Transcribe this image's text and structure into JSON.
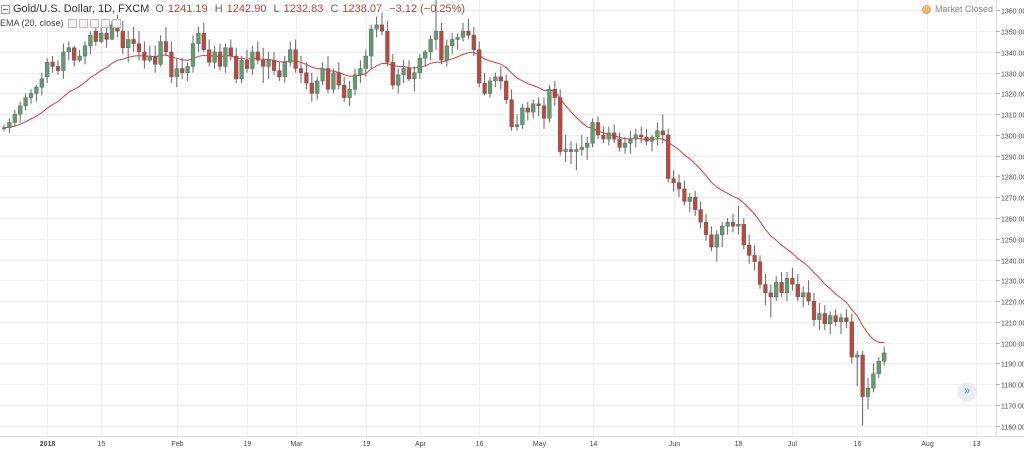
{
  "legend": {
    "symbol": "Gold/U.S. Dollar, 1D, FXCM",
    "open_label": "O",
    "open": "1241.19",
    "high_label": "H",
    "high": "1242.90",
    "low_label": "L",
    "low": "1232.83",
    "close_label": "C",
    "close": "1238.07",
    "change": "−3.12 (−0.25%)",
    "ema_label": "EMA (20, close)"
  },
  "status": {
    "text": "Market Closed",
    "icon": "clock-icon"
  },
  "scroll_button": {
    "icon": "double-chevron-right-icon",
    "glyph": "»"
  },
  "colors": {
    "up": "#5f9e70",
    "down": "#c0473c",
    "ema": "#e0393a",
    "grid": "#eceff3",
    "axis_text": "#4a4a4a"
  },
  "chart_data": {
    "type": "candlestick",
    "ylim": [
      1155,
      1365
    ],
    "y_ticks": [
      "1160.00",
      "1170.00",
      "1180.00",
      "1190.00",
      "1200.00",
      "1210.00",
      "1220.00",
      "1230.00",
      "1240.00",
      "1250.00",
      "1260.00",
      "1270.00",
      "1280.00",
      "1290.00",
      "1300.00",
      "1310.00",
      "1320.00",
      "1330.00",
      "1340.00",
      "1350.00",
      "1360.00"
    ],
    "x_ticks": [
      {
        "label": "2018",
        "bar": 8,
        "bold": true
      },
      {
        "label": "15",
        "bar": 18
      },
      {
        "label": "Feb",
        "bar": 32
      },
      {
        "label": "19",
        "bar": 45
      },
      {
        "label": "Mar",
        "bar": 54
      },
      {
        "label": "19",
        "bar": 67
      },
      {
        "label": "Apr",
        "bar": 77
      },
      {
        "label": "16",
        "bar": 88
      },
      {
        "label": "May",
        "bar": 99
      },
      {
        "label": "14",
        "bar": 109
      },
      {
        "label": "Jun",
        "bar": 124
      },
      {
        "label": "18",
        "bar": 136
      },
      {
        "label": "Jul",
        "bar": 146
      },
      {
        "label": "16",
        "bar": 158
      },
      {
        "label": "Aug",
        "bar": 171
      },
      {
        "label": "13",
        "bar": 180
      }
    ],
    "ohlc": [
      [
        1303,
        1305,
        1302,
        1303.5
      ],
      [
        1303.5,
        1308,
        1301,
        1306
      ],
      [
        1306,
        1312,
        1304,
        1310
      ],
      [
        1310,
        1316,
        1306,
        1314
      ],
      [
        1314,
        1320,
        1312,
        1318
      ],
      [
        1318,
        1322,
        1315,
        1320
      ],
      [
        1320,
        1324,
        1316,
        1323
      ],
      [
        1323,
        1330,
        1319,
        1327
      ],
      [
        1328,
        1337,
        1325,
        1335
      ],
      [
        1335,
        1338,
        1330,
        1333
      ],
      [
        1333,
        1336,
        1329,
        1331
      ],
      [
        1331,
        1344,
        1327,
        1340
      ],
      [
        1340,
        1345,
        1336,
        1342
      ],
      [
        1342,
        1343,
        1333,
        1336
      ],
      [
        1336,
        1341,
        1335,
        1338
      ],
      [
        1338,
        1345,
        1334,
        1343
      ],
      [
        1343,
        1350,
        1339,
        1348
      ],
      [
        1350,
        1352,
        1343,
        1345
      ],
      [
        1345,
        1352,
        1344,
        1349
      ],
      [
        1349,
        1355,
        1342,
        1346
      ],
      [
        1346,
        1355,
        1346,
        1353
      ],
      [
        1353,
        1358,
        1347,
        1350
      ],
      [
        1350,
        1355,
        1339,
        1342
      ],
      [
        1342,
        1350,
        1335,
        1346
      ],
      [
        1346,
        1352,
        1340,
        1344
      ],
      [
        1344,
        1350,
        1336,
        1340
      ],
      [
        1340,
        1345,
        1332,
        1336
      ],
      [
        1336,
        1343,
        1335,
        1338
      ],
      [
        1338,
        1343,
        1330,
        1334
      ],
      [
        1334,
        1348,
        1333,
        1345
      ],
      [
        1345,
        1352,
        1338,
        1340
      ],
      [
        1340,
        1345,
        1325,
        1328
      ],
      [
        1328,
        1337,
        1323,
        1332
      ],
      [
        1332,
        1337,
        1327,
        1330
      ],
      [
        1330,
        1335,
        1326,
        1333
      ],
      [
        1333,
        1348,
        1330,
        1344
      ],
      [
        1344,
        1352,
        1340,
        1349
      ],
      [
        1349,
        1354,
        1340,
        1341
      ],
      [
        1341,
        1346,
        1333,
        1335
      ],
      [
        1335,
        1343,
        1332,
        1340
      ],
      [
        1340,
        1344,
        1331,
        1333
      ],
      [
        1333,
        1344,
        1330,
        1342
      ],
      [
        1342,
        1346,
        1336,
        1338
      ],
      [
        1338,
        1342,
        1325,
        1327
      ],
      [
        1327,
        1338,
        1325,
        1336
      ],
      [
        1336,
        1341,
        1330,
        1332
      ],
      [
        1332,
        1343,
        1329,
        1340
      ],
      [
        1340,
        1345,
        1334,
        1336
      ],
      [
        1336,
        1342,
        1325,
        1333
      ],
      [
        1333,
        1340,
        1327,
        1336
      ],
      [
        1336,
        1340,
        1329,
        1331
      ],
      [
        1331,
        1335,
        1326,
        1328
      ],
      [
        1328,
        1338,
        1325,
        1335
      ],
      [
        1335,
        1345,
        1333,
        1341
      ],
      [
        1341,
        1346,
        1330,
        1332
      ],
      [
        1332,
        1338,
        1325,
        1330
      ],
      [
        1330,
        1335,
        1322,
        1325
      ],
      [
        1325,
        1330,
        1316,
        1320
      ],
      [
        1320,
        1328,
        1317,
        1326
      ],
      [
        1326,
        1335,
        1324,
        1332
      ],
      [
        1332,
        1338,
        1320,
        1322
      ],
      [
        1322,
        1332,
        1320,
        1330
      ],
      [
        1330,
        1335,
        1322,
        1324
      ],
      [
        1324,
        1328,
        1316,
        1318
      ],
      [
        1318,
        1326,
        1314,
        1322
      ],
      [
        1322,
        1332,
        1319,
        1329
      ],
      [
        1329,
        1336,
        1325,
        1332
      ],
      [
        1332,
        1341,
        1328,
        1338
      ],
      [
        1338,
        1353,
        1332,
        1351
      ],
      [
        1351,
        1357,
        1347,
        1353
      ],
      [
        1353,
        1359,
        1348,
        1350
      ],
      [
        1350,
        1355,
        1333,
        1335
      ],
      [
        1335,
        1339,
        1322,
        1324
      ],
      [
        1324,
        1332,
        1320,
        1329
      ],
      [
        1329,
        1336,
        1325,
        1332
      ],
      [
        1332,
        1336,
        1326,
        1327
      ],
      [
        1327,
        1333,
        1321,
        1330
      ],
      [
        1330,
        1339,
        1327,
        1337
      ],
      [
        1337,
        1341,
        1333,
        1340
      ],
      [
        1340,
        1348,
        1336,
        1346
      ],
      [
        1346,
        1367,
        1341,
        1350
      ],
      [
        1350,
        1354,
        1334,
        1336
      ],
      [
        1336,
        1346,
        1333,
        1343
      ],
      [
        1343,
        1349,
        1339,
        1346
      ],
      [
        1346,
        1349,
        1341,
        1347
      ],
      [
        1347,
        1354,
        1345,
        1350
      ],
      [
        1350,
        1356,
        1346,
        1348
      ],
      [
        1348,
        1352,
        1338,
        1341
      ],
      [
        1341,
        1345,
        1323,
        1325
      ],
      [
        1325,
        1330,
        1319,
        1320
      ],
      [
        1320,
        1328,
        1318,
        1326
      ],
      [
        1326,
        1330,
        1323,
        1328
      ],
      [
        1328,
        1333,
        1322,
        1326
      ],
      [
        1326,
        1329,
        1315,
        1317
      ],
      [
        1317,
        1322,
        1302,
        1304
      ],
      [
        1304,
        1310,
        1302,
        1305
      ],
      [
        1305,
        1315,
        1303,
        1313
      ],
      [
        1313,
        1316,
        1307,
        1311
      ],
      [
        1311,
        1317,
        1308,
        1315
      ],
      [
        1315,
        1318,
        1309,
        1314
      ],
      [
        1314,
        1318,
        1303,
        1308
      ],
      [
        1308,
        1324,
        1306,
        1322
      ],
      [
        1322,
        1326,
        1314,
        1318
      ],
      [
        1318,
        1322,
        1290,
        1292
      ],
      [
        1292,
        1300,
        1287,
        1293
      ],
      [
        1293,
        1297,
        1286,
        1292
      ],
      [
        1292,
        1296,
        1283,
        1293
      ],
      [
        1293,
        1300,
        1290,
        1294
      ],
      [
        1294,
        1299,
        1288,
        1296
      ],
      [
        1296,
        1308,
        1294,
        1306
      ],
      [
        1306,
        1309,
        1298,
        1300
      ],
      [
        1300,
        1304,
        1296,
        1298
      ],
      [
        1298,
        1304,
        1295,
        1301
      ],
      [
        1301,
        1305,
        1296,
        1298
      ],
      [
        1298,
        1301,
        1292,
        1294
      ],
      [
        1294,
        1299,
        1291,
        1296
      ],
      [
        1296,
        1302,
        1291,
        1298
      ],
      [
        1298,
        1303,
        1294,
        1300
      ],
      [
        1300,
        1304,
        1296,
        1299
      ],
      [
        1299,
        1303,
        1295,
        1297
      ],
      [
        1297,
        1300,
        1292,
        1299
      ],
      [
        1299,
        1306,
        1295,
        1302
      ],
      [
        1302,
        1310,
        1296,
        1300
      ],
      [
        1300,
        1303,
        1277,
        1279
      ],
      [
        1279,
        1283,
        1273,
        1277
      ],
      [
        1277,
        1281,
        1270,
        1274
      ],
      [
        1274,
        1278,
        1266,
        1268
      ],
      [
        1268,
        1272,
        1263,
        1270
      ],
      [
        1270,
        1273,
        1261,
        1264
      ],
      [
        1264,
        1268,
        1255,
        1258
      ],
      [
        1258,
        1262,
        1249,
        1252
      ],
      [
        1252,
        1256,
        1244,
        1246
      ],
      [
        1246,
        1254,
        1239,
        1252
      ],
      [
        1252,
        1258,
        1246,
        1256
      ],
      [
        1256,
        1260,
        1252,
        1258
      ],
      [
        1258,
        1262,
        1253,
        1256
      ],
      [
        1256,
        1266,
        1252,
        1257
      ],
      [
        1257,
        1260,
        1245,
        1247
      ],
      [
        1247,
        1252,
        1238,
        1242
      ],
      [
        1242,
        1247,
        1235,
        1239
      ],
      [
        1239,
        1242,
        1226,
        1228
      ],
      [
        1228,
        1233,
        1218,
        1224
      ],
      [
        1224,
        1228,
        1212,
        1222
      ],
      [
        1222,
        1232,
        1220,
        1229
      ],
      [
        1229,
        1234,
        1222,
        1224
      ],
      [
        1224,
        1234,
        1220,
        1231
      ],
      [
        1231,
        1236,
        1225,
        1228
      ],
      [
        1228,
        1233,
        1220,
        1222
      ],
      [
        1222,
        1227,
        1217,
        1224
      ],
      [
        1224,
        1230,
        1218,
        1220
      ],
      [
        1220,
        1224,
        1208,
        1211
      ],
      [
        1211,
        1219,
        1206,
        1214
      ],
      [
        1214,
        1218,
        1206,
        1209
      ],
      [
        1209,
        1215,
        1204,
        1213
      ],
      [
        1213,
        1216,
        1208,
        1210
      ],
      [
        1210,
        1214,
        1204,
        1212
      ],
      [
        1212,
        1216,
        1207,
        1210
      ],
      [
        1210,
        1214,
        1190,
        1193
      ],
      [
        1193,
        1196,
        1179,
        1194
      ],
      [
        1194,
        1196,
        1160,
        1174
      ],
      [
        1174,
        1183,
        1168,
        1178
      ],
      [
        1178,
        1190,
        1176,
        1185
      ],
      [
        1185,
        1193,
        1183,
        1191
      ],
      [
        1191,
        1198,
        1189,
        1195
      ]
    ],
    "ema": [
      1303.5,
      1303.7,
      1304.3,
      1305.2,
      1306.4,
      1307.7,
      1309.1,
      1310.8,
      1312.9,
      1314.6,
      1316.1,
      1318.4,
      1320.6,
      1322.0,
      1323.5,
      1325.4,
      1327.6,
      1329.2,
      1331.1,
      1332.5,
      1334.5,
      1336.0,
      1336.5,
      1337.4,
      1338.0,
      1338.2,
      1338.0,
      1338.0,
      1337.6,
      1338.3,
      1338.5,
      1337.5,
      1336.9,
      1336.2,
      1335.9,
      1336.7,
      1337.9,
      1338.3,
      1338.0,
      1338.2,
      1337.7,
      1338.1,
      1338.1,
      1337.0,
      1336.9,
      1336.5,
      1336.8,
      1336.7,
      1336.4,
      1336.4,
      1335.9,
      1335.2,
      1335.2,
      1335.7,
      1335.5,
      1335.0,
      1334.0,
      1332.7,
      1331.9,
      1331.9,
      1330.9,
      1330.8,
      1330.1,
      1329.0,
      1328.3,
      1328.4,
      1328.8,
      1329.6,
      1331.7,
      1333.3,
      1334.4,
      1334.4,
      1333.4,
      1333.0,
      1332.9,
      1332.4,
      1332.2,
      1332.7,
      1333.3,
      1334.5,
      1335.0,
      1335.1,
      1335.8,
      1336.7,
      1337.6,
      1338.8,
      1339.6,
      1339.8,
      1338.4,
      1336.6,
      1335.6,
      1334.9,
      1334.1,
      1332.5,
      1329.8,
      1327.5,
      1326.1,
      1324.7,
      1323.8,
      1322.8,
      1321.4,
      1321.5,
      1321.2,
      1317.5,
      1314.2,
      1311.1,
      1308.4,
      1306.0,
      1303.9,
      1303.1,
      1301.9,
      1301.0,
      1300.1,
      1299.6,
      1298.8,
      1298.2,
      1298.1,
      1298.3,
      1298.1,
      1297.8,
      1297.8,
      1298.2,
      1298.1,
      1296.5,
      1294.7,
      1292.8,
      1290.4,
      1288.5,
      1286.1,
      1283.4,
      1280.4,
      1277.2,
      1274.9,
      1273.2,
      1271.9,
      1270.4,
      1269.3,
      1267.2,
      1264.6,
      1261.9,
      1258.2,
      1254.5,
      1251.4,
      1249.3,
      1246.9,
      1245.0,
      1243.0,
      1240.5,
      1238.7,
      1236.5,
      1233.6,
      1231.2,
      1228.1,
      1225.9,
      1223.4,
      1221.4,
      1219.4,
      1215.9,
      1212.9,
      1208.1,
      1204.3,
      1201.5,
      1200.1,
      1200.0
    ]
  }
}
